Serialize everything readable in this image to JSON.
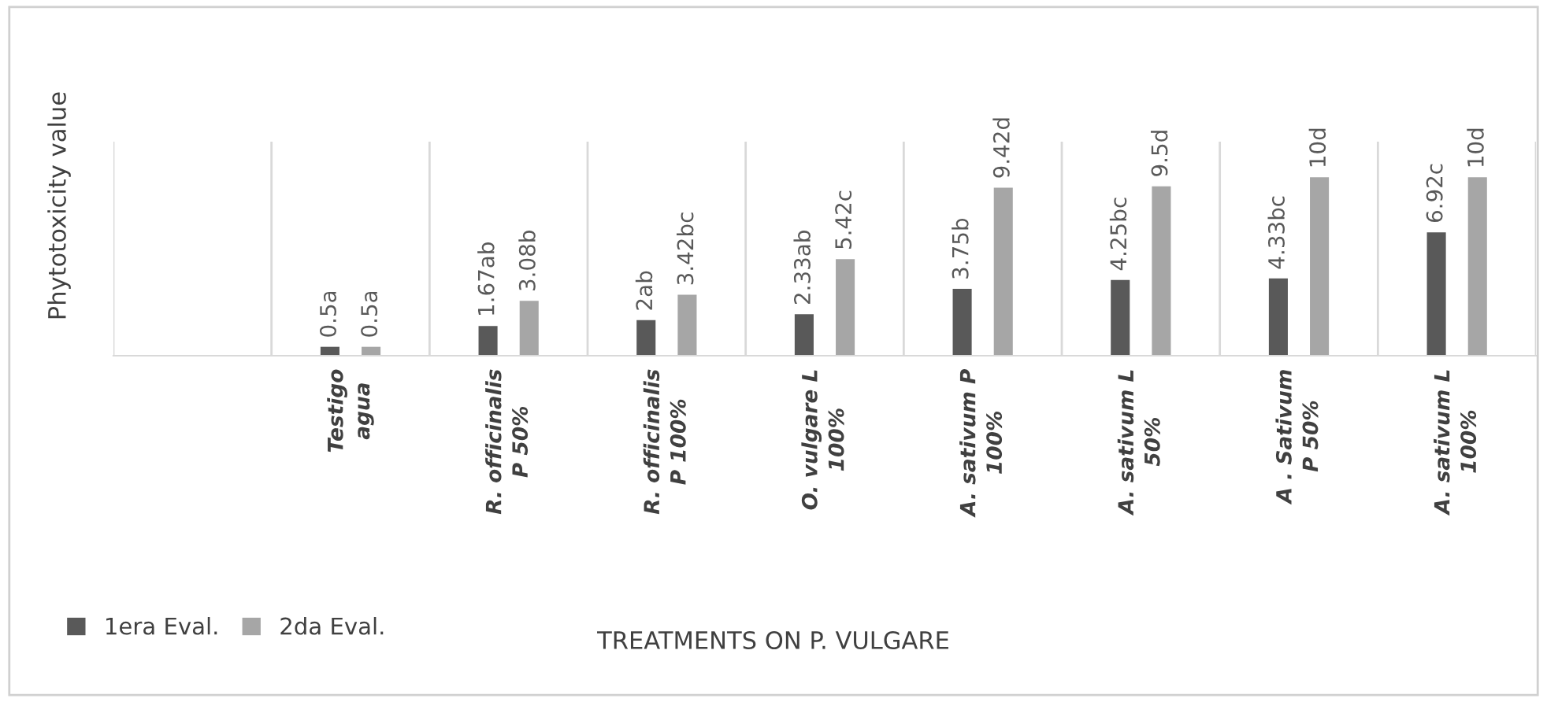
{
  "chart_data": {
    "type": "bar",
    "xlabel": "TREATMENTS ON P. VULGARE",
    "ylabel": "Phytotoxicity value",
    "categories": [
      null,
      "Testigo\nagua",
      "R. officinalis\nP 50%",
      "R. officinalis\nP 100%",
      "O. vulgare L\n100%",
      "A. sativum P\n100%",
      "A. sativum L\n50%",
      "A . Sativum\nP 50%",
      "A. sativum L\n100%"
    ],
    "series": [
      {
        "name": "1era Eval.",
        "color": "#595959",
        "values": [
          null,
          0.5,
          1.67,
          2,
          2.33,
          3.75,
          4.25,
          4.33,
          6.92
        ],
        "value_labels": [
          null,
          "0.5a",
          "1.67ab",
          "2ab",
          "2.33ab",
          "3.75b",
          "4.25bc",
          "4.33bc",
          "6.92c"
        ]
      },
      {
        "name": "2da Eval.",
        "color": "#a6a6a6",
        "values": [
          null,
          0.5,
          3.08,
          3.42,
          5.42,
          9.42,
          9.5,
          10,
          10
        ],
        "value_labels": [
          null,
          "0.5a",
          "3.08b",
          "3.42bc",
          "5.42c",
          "9.42d",
          "9.5d",
          "10d",
          "10d"
        ]
      }
    ],
    "grid": "x",
    "legend": "bottom left",
    "tick_labels": "x"
  }
}
